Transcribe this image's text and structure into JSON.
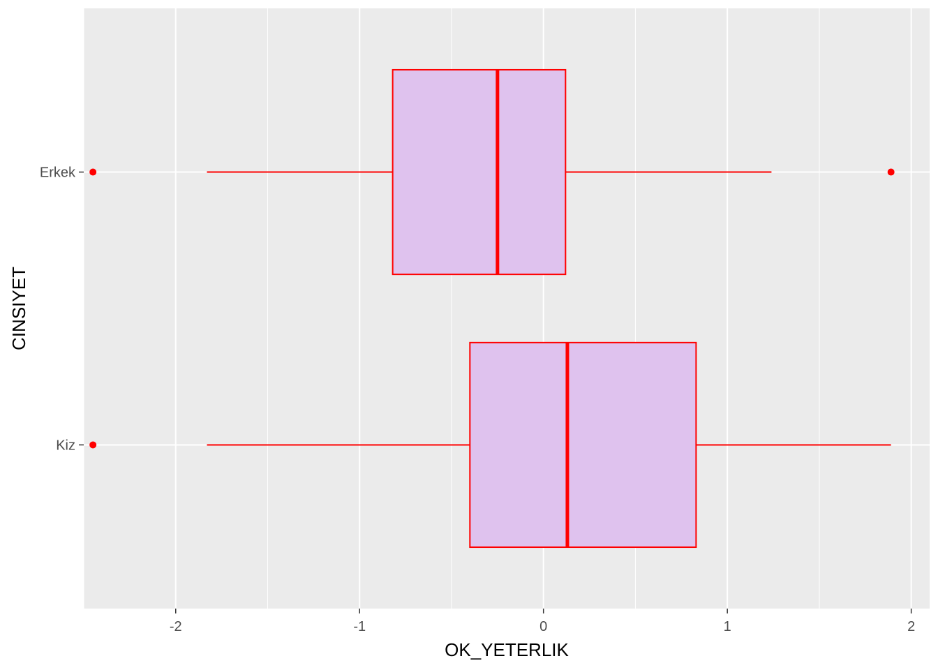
{
  "chart_data": {
    "type": "boxplot",
    "orientation": "horizontal",
    "xlabel": "OK_YETERLIK",
    "ylabel": "CINSIYET",
    "xlim": [
      -2.5,
      2.1
    ],
    "x_ticks": [
      -2,
      -1,
      0,
      1,
      2
    ],
    "x_tick_labels": [
      "-2",
      "-1",
      "0",
      "1",
      "2"
    ],
    "grid": true,
    "legend": "none",
    "colors": {
      "panel": "#ebebeb",
      "grid": "#ffffff",
      "box_fill": "#dfc2ee",
      "box_stroke": "#ff0000",
      "outlier": "#ff0000"
    },
    "categories": [
      "Erkek",
      "Kiz"
    ],
    "boxes": [
      {
        "category": "Erkek",
        "whisker_low": -1.83,
        "q1": -0.82,
        "median": -0.25,
        "q3": 0.12,
        "whisker_high": 1.24,
        "outliers": [
          -2.45,
          1.89
        ]
      },
      {
        "category": "Kiz",
        "whisker_low": -1.83,
        "q1": -0.4,
        "median": 0.13,
        "q3": 0.83,
        "whisker_high": 1.89,
        "outliers": [
          -2.45
        ]
      }
    ]
  }
}
